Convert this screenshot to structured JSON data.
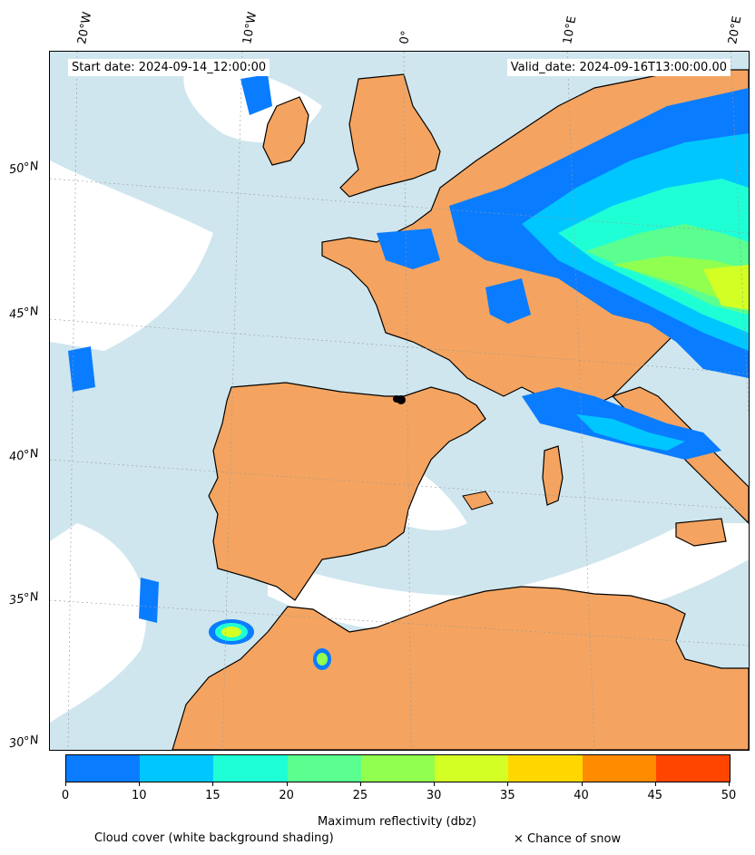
{
  "header": {
    "start_date": "Start date: 2024-09-14_12:00:00",
    "valid_date": "Valid_date: 2024-09-16T13:00:00.00"
  },
  "map": {
    "lon_labels": [
      "20°W",
      "10°W",
      "0°",
      "10°E",
      "20°E"
    ],
    "lat_labels": [
      "50°N",
      "45°N",
      "40°N",
      "35°N",
      "30°N"
    ],
    "colors": {
      "ocean_cloud": "#cfe6ee",
      "land": "#f4a460",
      "clear": "#ffffff",
      "coastline": "#000000"
    }
  },
  "colorbar": {
    "ticks": [
      "0",
      "10",
      "15",
      "20",
      "25",
      "30",
      "35",
      "40",
      "45",
      "50"
    ],
    "colors": [
      "#0a7cff",
      "#00c6ff",
      "#1fffd6",
      "#5aff8f",
      "#90ff4f",
      "#d3ff25",
      "#ffd700",
      "#ff8c00",
      "#ff4500"
    ],
    "title": "Maximum reflectivity (dbz)"
  },
  "footer": {
    "cloud_cover": "Cloud cover (white background shading)",
    "snow": "× Chance of snow"
  }
}
